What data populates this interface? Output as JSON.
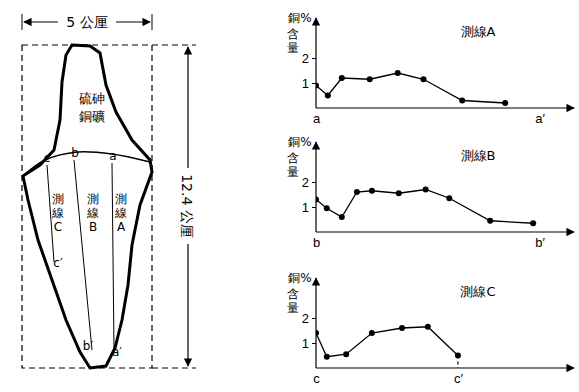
{
  "diagram": {
    "width_label": "5 公厘",
    "height_label": "12.4 公厘",
    "ore_label": [
      "硫砷",
      "銅礦"
    ],
    "lines": [
      {
        "name": "測線A",
        "start": "a",
        "end": "a′"
      },
      {
        "name": "測線B",
        "start": "b",
        "end": "b′"
      },
      {
        "name": "測線C",
        "start": "c",
        "end": "c′"
      }
    ]
  },
  "chart_data": [
    {
      "type": "line",
      "title": "測線A",
      "y_label": "銅%含量",
      "color": "#000000",
      "marker": "circle",
      "x": [
        0,
        0.55,
        1.2,
        2.5,
        3.8,
        5.0,
        6.8,
        8.8
      ],
      "values": [
        0.9,
        0.5,
        1.2,
        1.15,
        1.4,
        1.15,
        0.3,
        0.2
      ],
      "xlim": [
        0,
        12
      ],
      "ylim": [
        0,
        3.6
      ],
      "xticks": [
        {
          "value": 0,
          "label": "a"
        },
        {
          "value": 10.4,
          "label": "a′"
        }
      ],
      "yticks": [
        1,
        2
      ]
    },
    {
      "type": "line",
      "title": "測線B",
      "y_label": "銅%含量",
      "color": "#000000",
      "marker": "circle",
      "x": [
        0,
        0.5,
        1.2,
        1.9,
        2.6,
        3.85,
        5.1,
        6.2,
        8.1,
        10.1
      ],
      "values": [
        1.3,
        0.95,
        0.6,
        1.6,
        1.65,
        1.55,
        1.7,
        1.35,
        0.45,
        0.35
      ],
      "xlim": [
        0,
        12
      ],
      "ylim": [
        0,
        3.6
      ],
      "xticks": [
        {
          "value": 0,
          "label": "b"
        },
        {
          "value": 10.4,
          "label": "b′"
        }
      ],
      "yticks": [
        1,
        2
      ]
    },
    {
      "type": "line",
      "title": "測線C",
      "y_label": "銅%含量",
      "color": "#000000",
      "marker": "circle",
      "x": [
        0,
        0.5,
        1.4,
        2.6,
        4.0,
        5.2,
        6.6
      ],
      "values": [
        1.4,
        0.45,
        0.55,
        1.4,
        1.6,
        1.65,
        0.5
      ],
      "xlim": [
        0,
        12
      ],
      "ylim": [
        0,
        3.6
      ],
      "xticks": [
        {
          "value": 0,
          "label": "c"
        },
        {
          "value": 6.6,
          "label": "c′"
        }
      ],
      "yticks": [
        1,
        2
      ]
    }
  ]
}
